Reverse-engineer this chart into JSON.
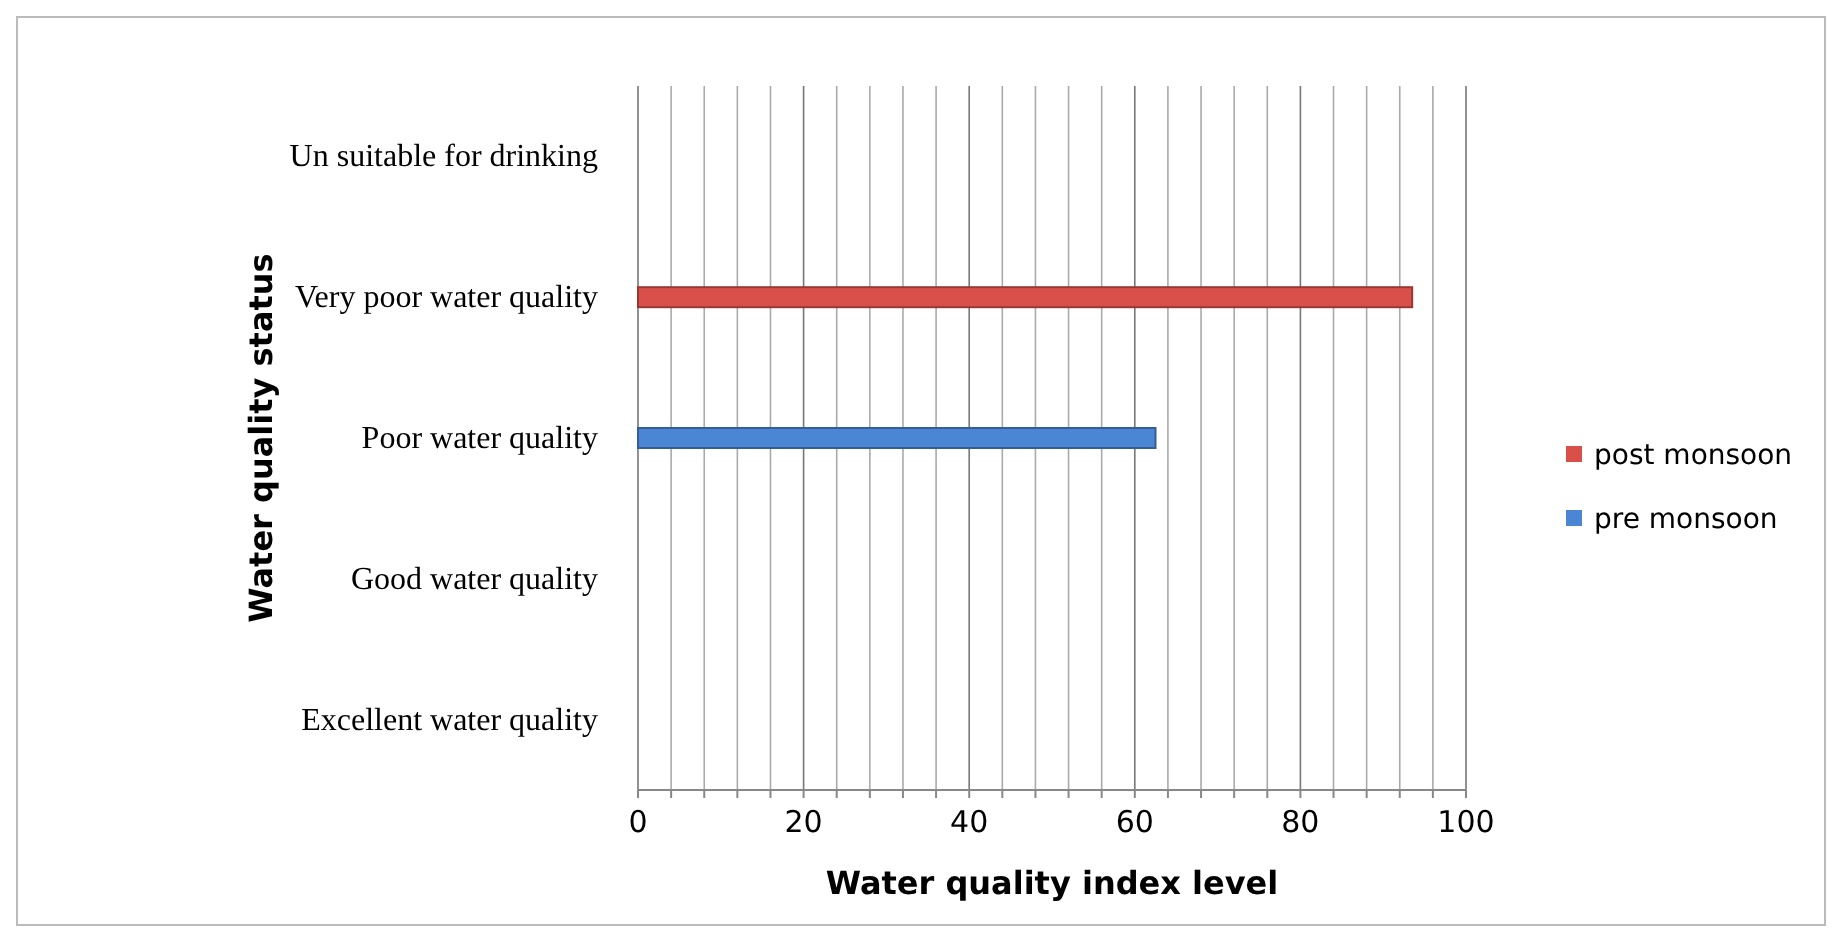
{
  "chart_data": {
    "type": "bar",
    "orientation": "horizontal",
    "xlabel": "Water quality index level",
    "ylabel": "Water quality status",
    "categories": [
      "Un suitable for drinking",
      "Very poor water quality",
      "Poor water quality",
      "Good water quality",
      "Excellent water quality"
    ],
    "series": [
      {
        "name": "post monsoon",
        "color": "#d9504a",
        "values": [
          null,
          93.5,
          null,
          null,
          null
        ]
      },
      {
        "name": "pre monsoon",
        "color": "#4a86d4",
        "values": [
          null,
          null,
          62.5,
          null,
          null
        ]
      }
    ],
    "xlim": [
      0,
      100
    ],
    "xticks": [
      0,
      {
        "value": 4,
        "label": null
      },
      {
        "value": 8,
        "label": null
      },
      {
        "value": 12,
        "label": null
      },
      {
        "value": 16,
        "label": null
      },
      20,
      {
        "value": 24,
        "label": null
      },
      {
        "value": 28,
        "label": null
      },
      {
        "value": 32,
        "label": null
      },
      {
        "value": 36,
        "label": null
      },
      40,
      {
        "value": 44,
        "label": null
      },
      {
        "value": 48,
        "label": null
      },
      {
        "value": 52,
        "label": null
      },
      {
        "value": 56,
        "label": null
      },
      60,
      {
        "value": 64,
        "label": null
      },
      {
        "value": 68,
        "label": null
      },
      {
        "value": 72,
        "label": null
      },
      {
        "value": 76,
        "label": null
      },
      80,
      {
        "value": 84,
        "label": null
      },
      {
        "value": 88,
        "label": null
      },
      {
        "value": 92,
        "label": null
      },
      {
        "value": 96,
        "label": null
      },
      100
    ],
    "grid": "x",
    "legend": "right"
  }
}
